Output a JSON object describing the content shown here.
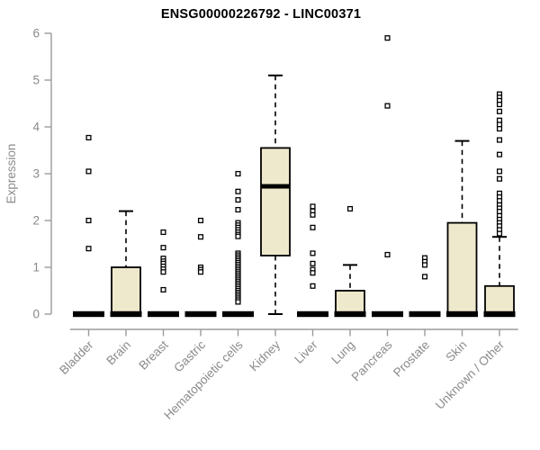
{
  "chart_data": {
    "type": "boxplot",
    "title": "ENSG00000226792 - LINC00371",
    "ylabel": "Expression",
    "ylim": [
      0,
      6
    ],
    "yticks": [
      0,
      1,
      2,
      3,
      4,
      5,
      6
    ],
    "grid": false,
    "legend": null,
    "categories": [
      "Bladder",
      "Brain",
      "Breast",
      "Gastric",
      "Hematopoietic cells",
      "Kidney",
      "Liver",
      "Lung",
      "Pancreas",
      "Prostate",
      "Skin",
      "Unknown / Other"
    ],
    "boxes": [
      {
        "category": "Bladder",
        "min": 0,
        "q1": 0,
        "median": 0,
        "q3": 0,
        "max": 0,
        "outliers": [
          3.77,
          3.05,
          2.0,
          1.4
        ]
      },
      {
        "category": "Brain",
        "min": 0,
        "q1": 0,
        "median": 0,
        "q3": 1.0,
        "max": 2.2,
        "outliers": []
      },
      {
        "category": "Breast",
        "min": 0,
        "q1": 0,
        "median": 0,
        "q3": 0,
        "max": 0,
        "outliers": [
          1.75,
          1.42,
          1.19,
          1.13,
          1.08,
          1.02,
          0.96,
          0.9,
          0.52
        ]
      },
      {
        "category": "Gastric",
        "min": 0,
        "q1": 0,
        "median": 0,
        "q3": 0,
        "max": 0,
        "outliers": [
          2.0,
          1.65,
          1.0,
          0.95,
          0.9
        ]
      },
      {
        "category": "Hematopoietic cells",
        "min": 0,
        "q1": 0,
        "median": 0,
        "q3": 0,
        "max": 0,
        "outliers": [
          3.0,
          2.62,
          2.44,
          2.23,
          1.95,
          1.9,
          1.85,
          1.8,
          1.75,
          1.7,
          1.66,
          1.3,
          1.26,
          1.22,
          1.18,
          1.14,
          1.1,
          1.06,
          1.02,
          0.98,
          0.94,
          0.9,
          0.86,
          0.82,
          0.78,
          0.74,
          0.7,
          0.66,
          0.62,
          0.58,
          0.54,
          0.5,
          0.46,
          0.42,
          0.38,
          0.34,
          0.3,
          0.26
        ]
      },
      {
        "category": "Kidney",
        "min": 0,
        "q1": 1.25,
        "median": 2.73,
        "q3": 3.55,
        "max": 5.1,
        "outliers": []
      },
      {
        "category": "Liver",
        "min": 0,
        "q1": 0,
        "median": 0,
        "q3": 0,
        "max": 0,
        "outliers": [
          2.3,
          2.2,
          2.12,
          1.85,
          1.3,
          1.08,
          0.95,
          0.88,
          0.6
        ]
      },
      {
        "category": "Lung",
        "min": 0,
        "q1": 0,
        "median": 0,
        "q3": 0.5,
        "max": 1.05,
        "outliers": [
          2.25
        ]
      },
      {
        "category": "Pancreas",
        "min": 0,
        "q1": 0,
        "median": 0,
        "q3": 0,
        "max": 0,
        "outliers": [
          5.9,
          4.45,
          1.27
        ]
      },
      {
        "category": "Prostate",
        "min": 0,
        "q1": 0,
        "median": 0,
        "q3": 0,
        "max": 0,
        "outliers": [
          1.2,
          1.12,
          1.05,
          0.8
        ]
      },
      {
        "category": "Skin",
        "min": 0,
        "q1": 0,
        "median": 0,
        "q3": 1.95,
        "max": 3.7,
        "outliers": []
      },
      {
        "category": "Unknown / Other",
        "min": 0,
        "q1": 0,
        "median": 0,
        "q3": 0.6,
        "max": 1.65,
        "outliers": [
          4.7,
          4.63,
          4.56,
          4.48,
          4.33,
          4.14,
          4.05,
          3.96,
          3.72,
          3.41,
          3.05,
          2.89,
          2.58,
          2.5,
          2.42,
          2.33,
          2.26,
          2.19,
          2.1,
          2.02,
          1.95,
          1.88,
          1.8,
          1.72
        ]
      }
    ],
    "colors": {
      "background": "#FFFFFF",
      "box_fill": "#EEE8CD",
      "box_border": "#000000",
      "median": "#000000",
      "whisker": "#000000",
      "outlier_stroke": "#000000",
      "outlier_fill": "#FFFFFF",
      "axis_line": "#9B9B9B",
      "tick_label": "#8A8A8A",
      "title": "#000000"
    }
  }
}
